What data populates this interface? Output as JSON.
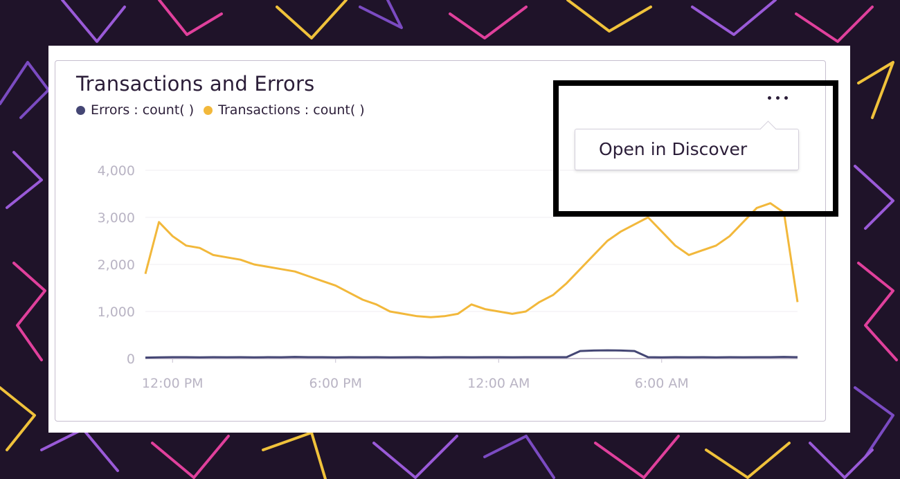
{
  "widget": {
    "title": "Transactions and Errors",
    "menu_icon": "ellipsis-horizontal-icon",
    "dropdown": {
      "items": [
        {
          "label": "Open in Discover"
        }
      ]
    }
  },
  "colors": {
    "errors": "#444674",
    "transactions": "#f2b83b",
    "background": "#1f1329",
    "highlight": "#000000"
  },
  "chart_data": {
    "type": "line",
    "title": "Transactions and Errors",
    "legend_position": "top-left",
    "grid": true,
    "ylim": [
      0,
      4000
    ],
    "y_ticks": [
      "0",
      "1,000",
      "2,000",
      "3,000",
      "4,000"
    ],
    "x_ticks": [
      "12:00 PM",
      "6:00 PM",
      "12:00 AM",
      "6:00 AM"
    ],
    "x": [
      "11:00 AM",
      "11:30 AM",
      "12:00 PM",
      "12:30 PM",
      "1:00 PM",
      "1:30 PM",
      "2:00 PM",
      "2:30 PM",
      "3:00 PM",
      "3:30 PM",
      "4:00 PM",
      "4:30 PM",
      "5:00 PM",
      "5:30 PM",
      "6:00 PM",
      "6:30 PM",
      "7:00 PM",
      "7:30 PM",
      "8:00 PM",
      "8:30 PM",
      "9:00 PM",
      "9:30 PM",
      "10:00 PM",
      "10:30 PM",
      "11:00 PM",
      "11:30 PM",
      "12:00 AM",
      "12:30 AM",
      "1:00 AM",
      "1:30 AM",
      "2:00 AM",
      "2:30 AM",
      "3:00 AM",
      "3:30 AM",
      "4:00 AM",
      "4:30 AM",
      "5:00 AM",
      "5:30 AM",
      "6:00 AM",
      "6:30 AM",
      "7:00 AM",
      "7:30 AM",
      "8:00 AM",
      "8:30 AM",
      "9:00 AM",
      "9:30 AM",
      "10:00 AM",
      "10:30 AM",
      "11:00 AM"
    ],
    "series": [
      {
        "name": "Errors : count( )",
        "values": [
          20,
          25,
          30,
          30,
          25,
          30,
          28,
          30,
          25,
          30,
          28,
          35,
          30,
          30,
          25,
          30,
          28,
          30,
          25,
          28,
          30,
          25,
          30,
          30,
          28,
          30,
          30,
          28,
          30,
          30,
          30,
          30,
          160,
          170,
          175,
          170,
          160,
          30,
          25,
          30,
          28,
          30,
          25,
          30,
          28,
          30,
          30,
          35,
          30
        ]
      },
      {
        "name": "Transactions : count( )",
        "values": [
          1800,
          2900,
          2600,
          2400,
          2350,
          2200,
          2150,
          2100,
          2000,
          1950,
          1900,
          1850,
          1750,
          1650,
          1550,
          1400,
          1250,
          1150,
          1000,
          950,
          900,
          880,
          900,
          950,
          1150,
          1050,
          1000,
          950,
          1000,
          1200,
          1350,
          1600,
          1900,
          2200,
          2500,
          2700,
          2850,
          3000,
          2700,
          2400,
          2200,
          2300,
          2400,
          2600,
          2900,
          3200,
          3300,
          3100,
          1200
        ]
      }
    ]
  }
}
